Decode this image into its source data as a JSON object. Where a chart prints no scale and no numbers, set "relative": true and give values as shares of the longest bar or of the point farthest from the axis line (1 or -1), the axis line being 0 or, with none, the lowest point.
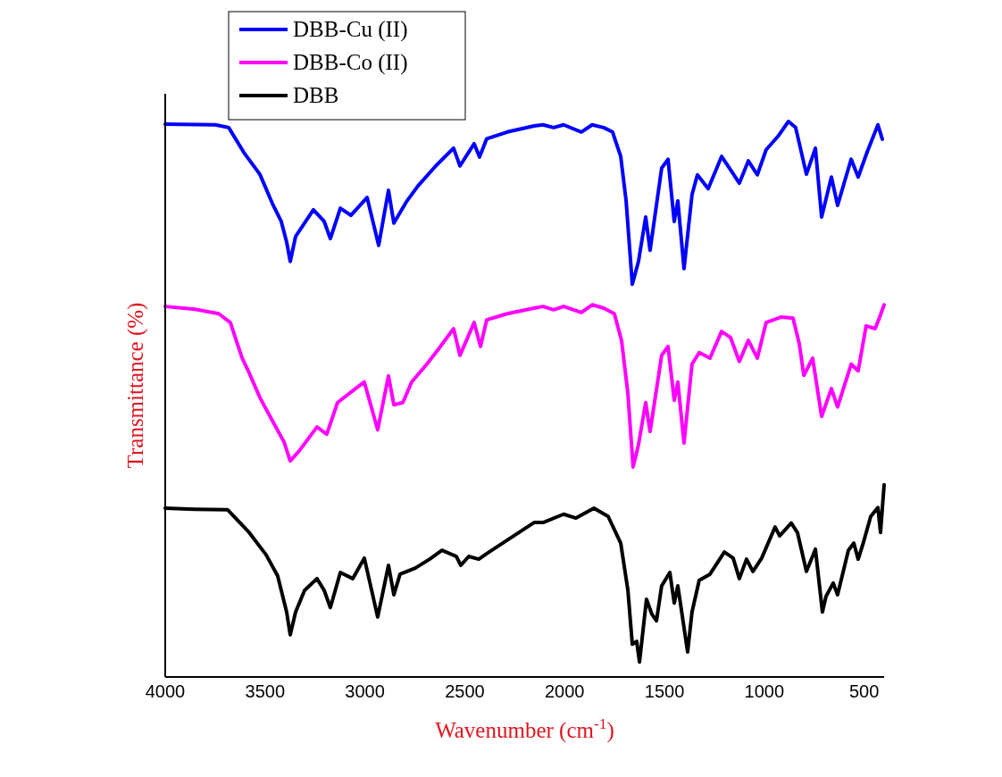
{
  "chart_data": {
    "type": "line",
    "relative": true,
    "xlabel": "Wavenumber (cm$^{-1}$)",
    "ylabel": "Transmittance (%)",
    "xlim": [
      4000,
      400
    ],
    "xticks": [
      4000,
      3500,
      3000,
      2500,
      2000,
      1500,
      1000,
      500
    ],
    "tick_labels": "x",
    "grid": false,
    "legend": "top left",
    "marker": "none",
    "line_style": "solid",
    "series": [
      {
        "name": "DBB-Cu (II)",
        "color": "#0000ff",
        "x": [
          4000,
          3750,
          3682,
          3606,
          3526,
          3463,
          3419,
          3392,
          3374,
          3347,
          3258,
          3204,
          3173,
          3123,
          3070,
          2989,
          2931,
          2882,
          2855,
          2793,
          2734,
          2645,
          2556,
          2524,
          2453,
          2426,
          2390,
          2287,
          2153,
          2108,
          2055,
          2005,
          1916,
          1862,
          1804,
          1760,
          1719,
          1692,
          1661,
          1630,
          1594,
          1572,
          1514,
          1482,
          1451,
          1433,
          1402,
          1362,
          1335,
          1281,
          1214,
          1169,
          1125,
          1080,
          1035,
          991,
          932,
          879,
          843,
          789,
          744,
          713,
          664,
          633,
          565,
          530,
          485,
          431,
          409
        ],
        "values": [
          0.995,
          0.994,
          0.989,
          0.944,
          0.905,
          0.852,
          0.82,
          0.783,
          0.748,
          0.793,
          0.841,
          0.82,
          0.789,
          0.844,
          0.831,
          0.863,
          0.777,
          0.876,
          0.817,
          0.855,
          0.884,
          0.92,
          0.952,
          0.92,
          0.96,
          0.936,
          0.969,
          0.981,
          0.992,
          0.994,
          0.989,
          0.994,
          0.981,
          0.994,
          0.989,
          0.981,
          0.937,
          0.857,
          0.707,
          0.748,
          0.828,
          0.768,
          0.916,
          0.932,
          0.82,
          0.857,
          0.735,
          0.868,
          0.904,
          0.879,
          0.937,
          0.913,
          0.889,
          0.929,
          0.904,
          0.949,
          0.973,
          1.0,
          0.989,
          0.905,
          0.952,
          0.828,
          0.9,
          0.849,
          0.932,
          0.9,
          0.945,
          0.994,
          0.968
        ]
      },
      {
        "name": "DBB-Co (II)",
        "color": "#ff00ff",
        "x": [
          4000,
          3852,
          3732,
          3674,
          3615,
          3584,
          3526,
          3463,
          3405,
          3374,
          3329,
          3240,
          3191,
          3137,
          3047,
          3003,
          2936,
          2882,
          2855,
          2810,
          2766,
          2690,
          2632,
          2556,
          2524,
          2453,
          2421,
          2390,
          2287,
          2153,
          2108,
          2055,
          2005,
          1916,
          1862,
          1804,
          1751,
          1715,
          1683,
          1657,
          1630,
          1594,
          1572,
          1514,
          1482,
          1451,
          1433,
          1402,
          1362,
          1326,
          1272,
          1214,
          1169,
          1125,
          1080,
          1035,
          991,
          914,
          856,
          825,
          802,
          758,
          713,
          664,
          633,
          565,
          530,
          490,
          445,
          422,
          400
        ],
        "values": [
          0.667,
          0.662,
          0.654,
          0.638,
          0.574,
          0.551,
          0.503,
          0.461,
          0.423,
          0.389,
          0.407,
          0.45,
          0.437,
          0.494,
          0.519,
          0.531,
          0.445,
          0.542,
          0.49,
          0.494,
          0.531,
          0.563,
          0.59,
          0.627,
          0.579,
          0.638,
          0.595,
          0.643,
          0.654,
          0.664,
          0.667,
          0.661,
          0.667,
          0.656,
          0.67,
          0.664,
          0.654,
          0.606,
          0.51,
          0.378,
          0.418,
          0.494,
          0.442,
          0.579,
          0.595,
          0.498,
          0.531,
          0.421,
          0.563,
          0.584,
          0.574,
          0.622,
          0.611,
          0.568,
          0.606,
          0.574,
          0.638,
          0.648,
          0.646,
          0.6,
          0.543,
          0.574,
          0.469,
          0.519,
          0.486,
          0.563,
          0.551,
          0.632,
          0.627,
          0.648,
          0.67
        ]
      },
      {
        "name": "DBB",
        "color": "#000000",
        "x": [
          4000,
          3852,
          3687,
          3584,
          3495,
          3437,
          3392,
          3374,
          3347,
          3302,
          3240,
          3204,
          3173,
          3123,
          3061,
          3003,
          2936,
          2882,
          2855,
          2824,
          2748,
          2676,
          2614,
          2542,
          2520,
          2480,
          2430,
          2390,
          2242,
          2153,
          2108,
          2005,
          1943,
          1853,
          1782,
          1719,
          1683,
          1661,
          1639,
          1625,
          1590,
          1563,
          1540,
          1514,
          1473,
          1451,
          1433,
          1384,
          1362,
          1326,
          1272,
          1200,
          1156,
          1125,
          1089,
          1057,
          1013,
          946,
          923,
          865,
          834,
          789,
          744,
          709,
          691,
          655,
          633,
          579,
          552,
          530,
          507,
          467,
          431,
          418,
          400
        ],
        "values": [
          0.304,
          0.302,
          0.301,
          0.262,
          0.22,
          0.182,
          0.117,
          0.076,
          0.117,
          0.156,
          0.177,
          0.156,
          0.125,
          0.188,
          0.177,
          0.214,
          0.108,
          0.201,
          0.148,
          0.185,
          0.196,
          0.212,
          0.228,
          0.217,
          0.201,
          0.217,
          0.212,
          0.222,
          0.257,
          0.278,
          0.278,
          0.293,
          0.286,
          0.304,
          0.289,
          0.241,
          0.156,
          0.059,
          0.064,
          0.027,
          0.14,
          0.113,
          0.101,
          0.164,
          0.188,
          0.133,
          0.164,
          0.045,
          0.117,
          0.174,
          0.185,
          0.225,
          0.214,
          0.177,
          0.212,
          0.19,
          0.214,
          0.27,
          0.254,
          0.277,
          0.26,
          0.19,
          0.23,
          0.117,
          0.145,
          0.169,
          0.148,
          0.228,
          0.241,
          0.212,
          0.238,
          0.289,
          0.305,
          0.26,
          0.346
        ]
      }
    ]
  }
}
